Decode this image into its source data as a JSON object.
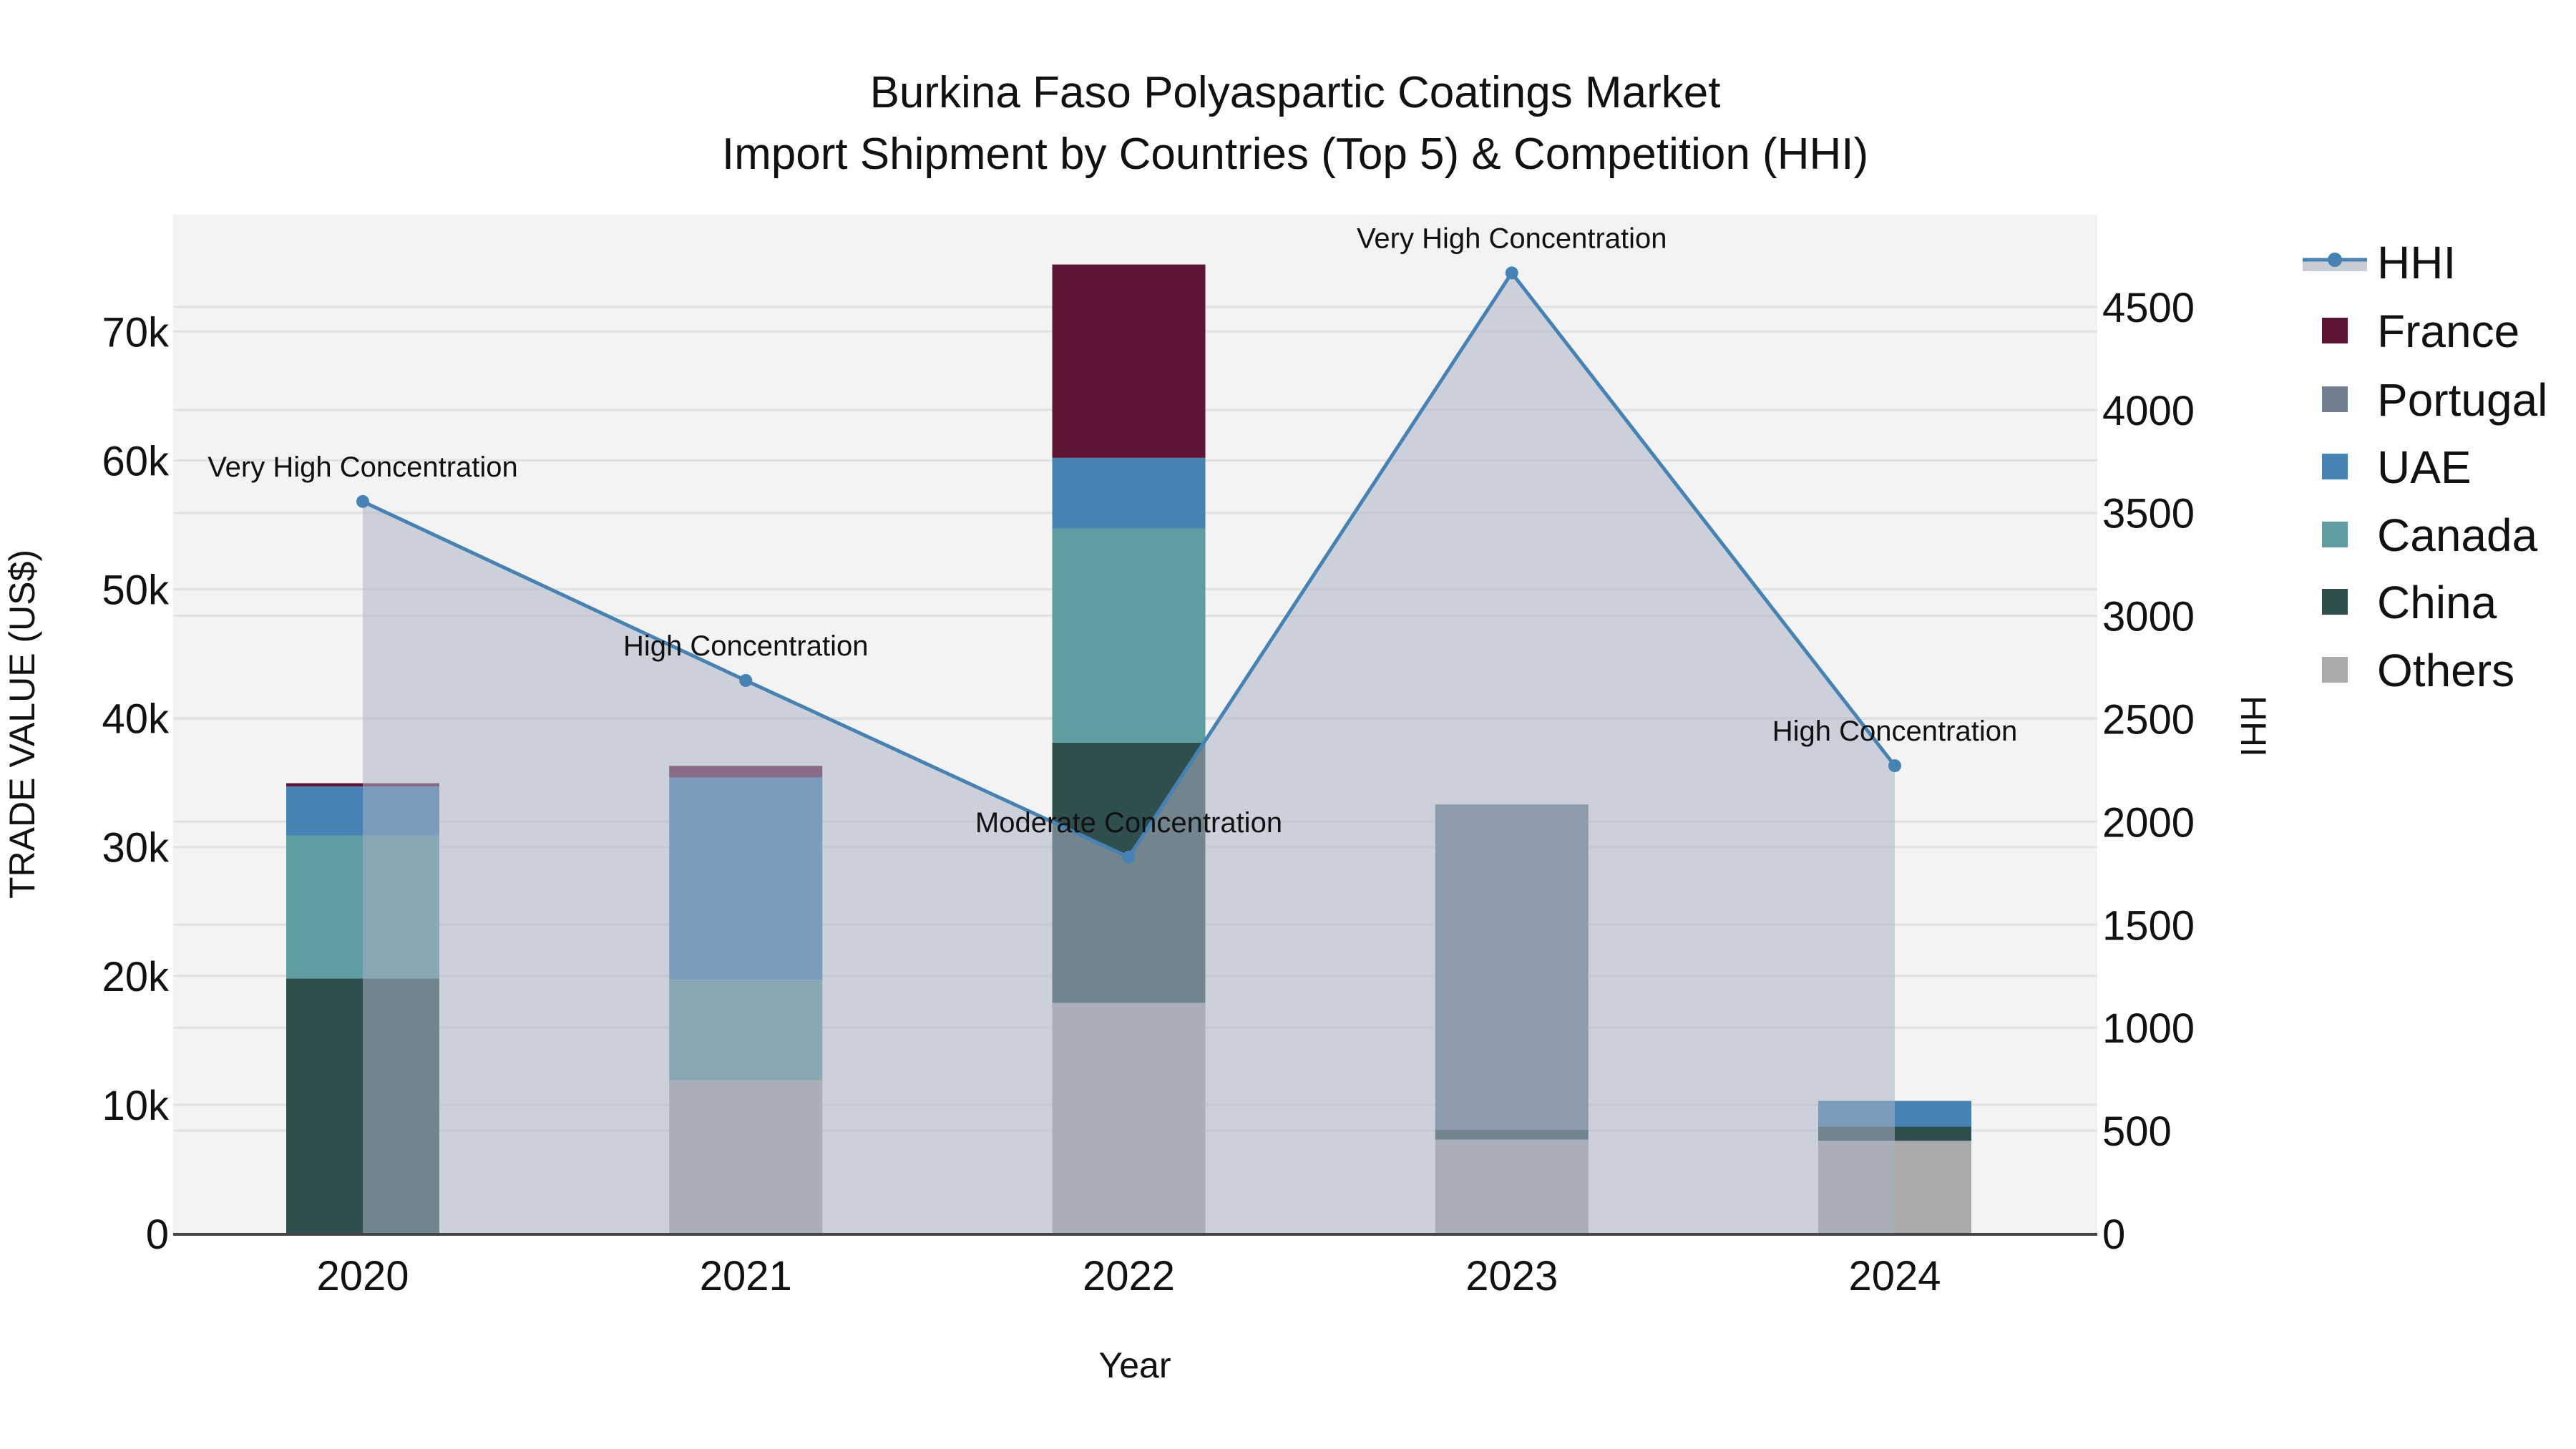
{
  "title": {
    "line1": "Burkina Faso Polyaspartic Coatings Market",
    "line2": "Import Shipment by Countries (Top 5) & Competition (HHI)"
  },
  "axes": {
    "x_title": "Year",
    "y_left_title": "TRADE VALUE (US$)",
    "y_right_title": "HHI",
    "y_left_ticks": [
      "0",
      "10k",
      "20k",
      "30k",
      "40k",
      "50k",
      "60k",
      "70k"
    ],
    "y_right_ticks": [
      "0",
      "500",
      "1000",
      "1500",
      "2000",
      "2500",
      "3000",
      "3500",
      "4000",
      "4500"
    ]
  },
  "legend": {
    "items": [
      {
        "label": "HHI",
        "color": "#4682b4",
        "type": "line"
      },
      {
        "label": "France",
        "color": "#5f1436",
        "type": "bar"
      },
      {
        "label": "Portugal",
        "color": "#708090",
        "type": "bar"
      },
      {
        "label": "UAE",
        "color": "#4682b4",
        "type": "bar"
      },
      {
        "label": "Canada",
        "color": "#5f9ea0",
        "type": "bar"
      },
      {
        "label": "China",
        "color": "#2f4f4f",
        "type": "bar"
      },
      {
        "label": "Others",
        "color": "#a9a9a9",
        "type": "bar"
      }
    ]
  },
  "annotations": [
    {
      "year": "2020",
      "text": "Very High Concentration"
    },
    {
      "year": "2021",
      "text": "High Concentration"
    },
    {
      "year": "2022",
      "text": "Moderate Concentration"
    },
    {
      "year": "2023",
      "text": "Very High Concentration"
    },
    {
      "year": "2024",
      "text": "High Concentration"
    }
  ],
  "chart_data": {
    "type": "bar",
    "subtype": "stacked bar with HHI line/area on secondary axis",
    "title": "Burkina Faso Polyaspartic Coatings Market\nImport Shipment by Countries (Top 5) & Competition (HHI)",
    "xlabel": "Year",
    "ylabel": "TRADE VALUE (US$)",
    "y2label": "HHI",
    "categories": [
      "2020",
      "2021",
      "2022",
      "2023",
      "2024"
    ],
    "ylim": [
      0,
      79000
    ],
    "y2lim": [
      0,
      4950
    ],
    "grid": true,
    "legend_position": "right",
    "series": [
      {
        "name": "Others",
        "color": "#a9a9a9",
        "values": [
          0,
          11900,
          17900,
          7300,
          7200
        ]
      },
      {
        "name": "China",
        "color": "#2f4f4f",
        "values": [
          19800,
          0,
          20200,
          750,
          1100
        ]
      },
      {
        "name": "Canada",
        "color": "#5f9ea0",
        "values": [
          11100,
          7800,
          16600,
          0,
          0
        ]
      },
      {
        "name": "UAE",
        "color": "#4682b4",
        "values": [
          3800,
          15700,
          5500,
          0,
          2000
        ]
      },
      {
        "name": "Portugal",
        "color": "#708090",
        "values": [
          0,
          0,
          0,
          25250,
          0
        ]
      },
      {
        "name": "France",
        "color": "#5f1436",
        "values": [
          250,
          900,
          15000,
          0,
          0
        ]
      }
    ],
    "hhi": {
      "name": "HHI",
      "axis": "right",
      "color": "#4682b4",
      "values": [
        3555,
        2686,
        1828,
        4665,
        2272
      ],
      "labels": [
        "Very High Concentration",
        "High Concentration",
        "Moderate Concentration",
        "Very High Concentration",
        "High Concentration"
      ]
    }
  }
}
